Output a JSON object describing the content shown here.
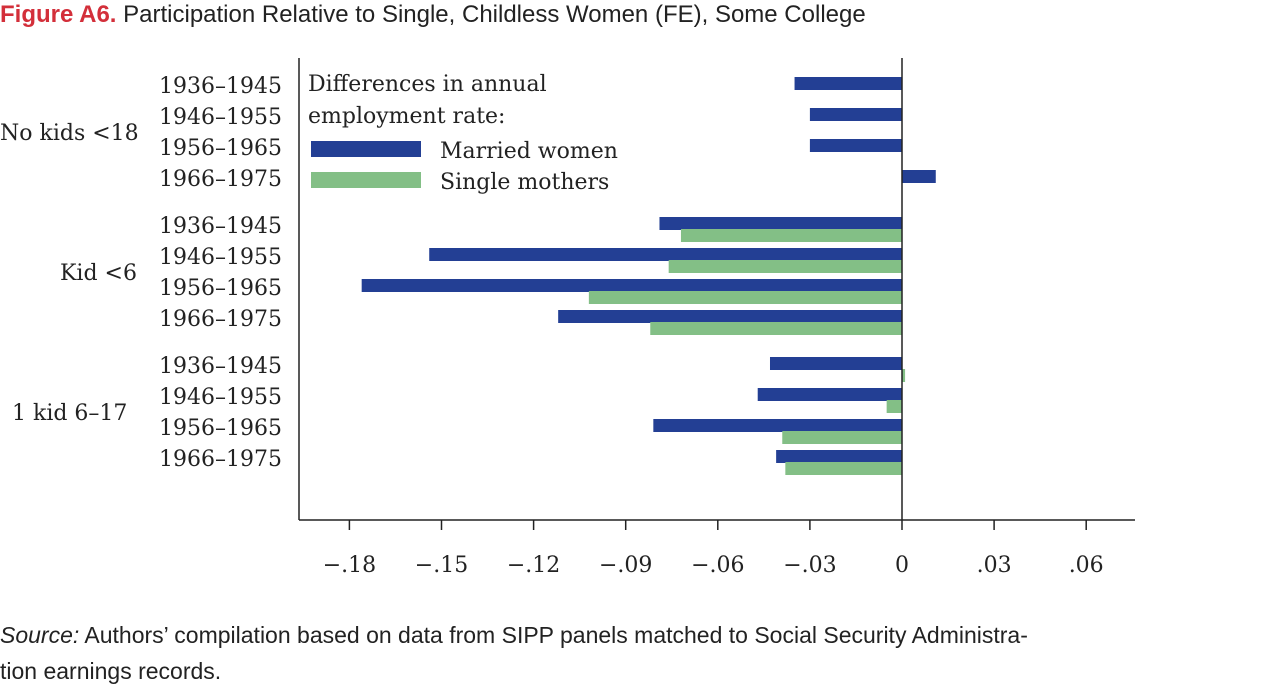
{
  "figure": {
    "label": "Figure A6.",
    "title": "Participation Relative to Single, Childless Women (FE), Some College"
  },
  "source": {
    "label": "Source:",
    "line1": "Authors’ compilation based on data from SIPP panels matched to Social Security Administra-",
    "line2": "tion earnings records."
  },
  "chart_data": {
    "type": "bar",
    "orientation": "horizontal",
    "legend": {
      "title_line1": "Differences in annual",
      "title_line2": "employment rate:",
      "placement": "inside top-left"
    },
    "xlim": [
      -0.2,
      0.075
    ],
    "ticks": [
      {
        "value": -0.18,
        "label": "−.18"
      },
      {
        "value": -0.15,
        "label": "−.15"
      },
      {
        "value": -0.12,
        "label": "−.12"
      },
      {
        "value": -0.09,
        "label": "−.09"
      },
      {
        "value": -0.06,
        "label": "−.06"
      },
      {
        "value": -0.03,
        "label": "−.03"
      },
      {
        "value": 0,
        "label": "0"
      },
      {
        "value": 0.03,
        "label": ".03"
      },
      {
        "value": 0.06,
        "label": ".06"
      }
    ],
    "grid": false,
    "series": [
      {
        "name": "Married women",
        "color": "#233f94"
      },
      {
        "name": "Single mothers",
        "color": "#83bf86"
      }
    ],
    "groups": [
      {
        "label": "No kids <18",
        "cohorts": [
          {
            "label": "1936–1945",
            "values": [
              -0.035,
              null
            ]
          },
          {
            "label": "1946–1955",
            "values": [
              -0.03,
              null
            ]
          },
          {
            "label": "1956–1965",
            "values": [
              -0.03,
              null
            ]
          },
          {
            "label": "1966–1975",
            "values": [
              0.011,
              null
            ]
          }
        ]
      },
      {
        "label": "Kid <6",
        "cohorts": [
          {
            "label": "1936–1945",
            "values": [
              -0.079,
              -0.072
            ]
          },
          {
            "label": "1946–1955",
            "values": [
              -0.154,
              -0.076
            ]
          },
          {
            "label": "1956–1965",
            "values": [
              -0.176,
              -0.102
            ]
          },
          {
            "label": "1966–1975",
            "values": [
              -0.112,
              -0.082
            ]
          }
        ]
      },
      {
        "label": "1 kid 6–17",
        "cohorts": [
          {
            "label": "1936–1945",
            "values": [
              -0.043,
              0.001
            ]
          },
          {
            "label": "1946–1955",
            "values": [
              -0.047,
              -0.005
            ]
          },
          {
            "label": "1956–1965",
            "values": [
              -0.081,
              -0.039
            ]
          },
          {
            "label": "1966–1975",
            "values": [
              -0.041,
              -0.038
            ]
          }
        ]
      }
    ]
  }
}
